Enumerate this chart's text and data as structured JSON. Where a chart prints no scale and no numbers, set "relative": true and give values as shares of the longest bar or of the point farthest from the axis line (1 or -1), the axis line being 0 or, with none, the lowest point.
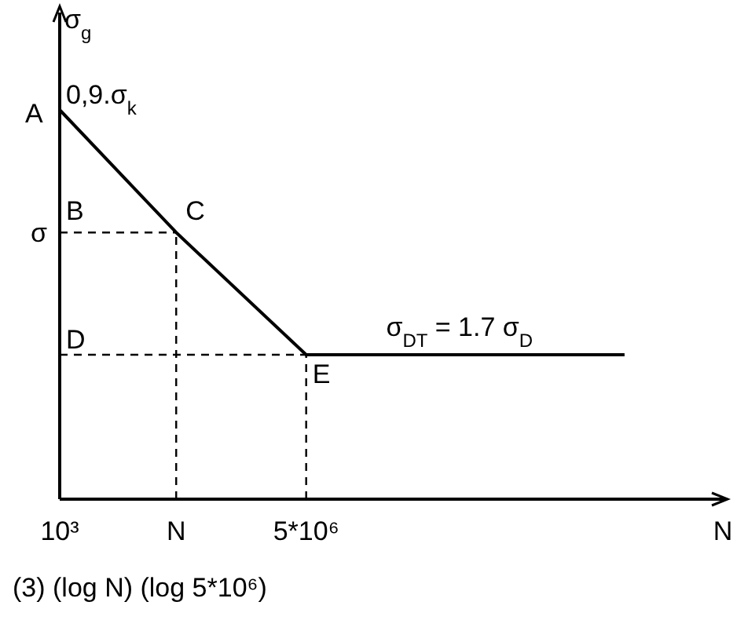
{
  "chart_data": {
    "type": "line",
    "relative": true,
    "log": "x",
    "xlabel": "N",
    "ylabel": "σ$_{g}$",
    "x": [
      1000,
      56000,
      5000000,
      300000000000
    ],
    "series": [
      {
        "color": "#000000",
        "values": [
          1,
          0.685,
          0.371,
          0.371
        ]
      }
    ],
    "xlim": [
      1000,
      10000000000000
    ],
    "xticks": [
      {
        "value": 1000,
        "label": "10³"
      },
      {
        "value": 56000,
        "label": "N"
      },
      {
        "value": 5000000,
        "label": "5*10⁶"
      }
    ],
    "marker": "none",
    "line_style": "solid",
    "ref_lines": [
      {
        "axis": "y",
        "value": 0.685,
        "label": "σ",
        "line_style": "dashed",
        "color": "#000000"
      },
      {
        "axis": "y",
        "value": 0.371,
        "label": null,
        "line_style": "dashed",
        "color": "#000000"
      },
      {
        "axis": "x",
        "value": 56000,
        "label": null,
        "line_style": "dashed",
        "color": "#000000"
      },
      {
        "axis": "x",
        "value": 5000000,
        "label": null,
        "line_style": "dashed",
        "color": "#000000"
      }
    ],
    "annotations": [
      {
        "text": "A",
        "x": 1000,
        "y": 1
      },
      {
        "text": "0,9.σ$_{k}$",
        "x": 1000,
        "y": 1
      },
      {
        "text": "B",
        "x": 1000,
        "y": 0.685
      },
      {
        "text": "C",
        "x": 56000,
        "y": 0.685
      },
      {
        "text": "D",
        "x": 1000,
        "y": 0.371
      },
      {
        "text": "E",
        "x": 5000000,
        "y": 0.371
      },
      {
        "text": "σ$_{DT}$ = 1.7 σ$_{D}$",
        "x": 1000000000,
        "y": 0.371
      },
      "(3)    (log N) (log 5*10⁶)"
    ]
  }
}
